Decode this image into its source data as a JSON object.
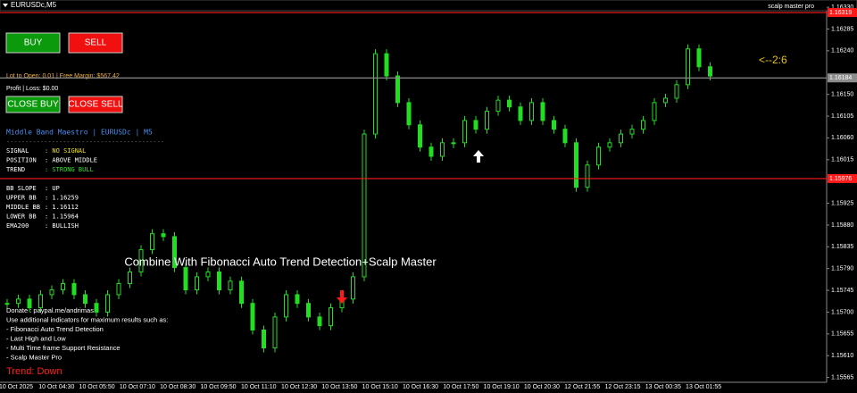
{
  "window": {
    "symbol": "EURUSDc,M5",
    "indicator": "scalp master pro"
  },
  "buttons": {
    "buy": "BUY",
    "sell": "SELL",
    "close_buy": "CLOSE BUY",
    "close_sell": "CLOSE SELL"
  },
  "account": {
    "lot_margin": "Lot to Open: 0.01 | Free Margin: $567.42",
    "profit": "Profit | Loss: $0.00"
  },
  "panel": {
    "title": "Middle Band Maestro | EURUSDc | M5",
    "separator": "------------------------------------------",
    "rows": [
      [
        "SIGNAL",
        ": NO SIGNAL"
      ],
      [
        "POSITION",
        ": ABOVE MIDDLE"
      ],
      [
        "TREND",
        ": STRONG BULL"
      ]
    ],
    "bands": [
      [
        "BB SLOPE",
        ": UP"
      ],
      [
        "UPPER BB",
        ": 1.16259"
      ],
      [
        "MIDDLE BB",
        ": 1.16112"
      ],
      [
        "LOWER BB",
        ": 1.15964"
      ],
      [
        "EMA200",
        ": BULLISH"
      ]
    ]
  },
  "promo": {
    "headline": "Combine With Fibonacci Auto Trend Detection+Scalp Master",
    "lines": [
      "Donate : paypal.me/andrimas",
      "Use additional indicators for maximum results such as:",
      "- Fibonacci Auto Trend Detection",
      "- Last High and Low",
      "- Multi Time frame Support Resistance",
      "- Scalp Master Pro"
    ],
    "trend": "Trend: Down"
  },
  "ratio": "<--2:6",
  "chart_data": {
    "type": "candlestick",
    "color": "#22dd22",
    "x_labels": [
      "10 Oct 2025",
      "10 Oct 04:30",
      "10 Oct 05:50",
      "10 Oct 07:10",
      "10 Oct 08:30",
      "10 Oct 09:50",
      "10 Oct 11:10",
      "10 Oct 12:30",
      "10 Oct 13:50",
      "10 Oct 15:10",
      "10 Oct 16:30",
      "10 Oct 17:50",
      "10 Oct 19:10",
      "10 Oct 20:30",
      "12 Oct 21:55",
      "12 Oct 23:15",
      "13 Oct 00:35",
      "13 Oct 01:55"
    ],
    "prices": [
      1.15718,
      1.15727,
      1.15709,
      1.15736,
      1.15746,
      1.15759,
      1.15736,
      1.15718,
      1.157,
      1.15736,
      1.15759,
      1.15783,
      1.15829,
      1.15862,
      1.15856,
      1.15792,
      1.15746,
      1.15773,
      1.15783,
      1.15746,
      1.15764,
      1.15718,
      1.15663,
      1.15626,
      1.1569,
      1.15736,
      1.15718,
      1.1569,
      1.15672,
      1.15709,
      1.15727,
      1.15773,
      1.16068,
      1.16234,
      1.16188,
      1.16133,
      1.16087,
      1.16041,
      1.16022,
      1.1605,
      1.1605,
      1.16096,
      1.16078,
      1.16115,
      1.16138,
      1.16124,
      1.16096,
      1.16133,
      1.16096,
      1.16078,
      1.1605,
      1.15958,
      1.16004,
      1.16041,
      1.1605,
      1.16068,
      1.16078,
      1.16096,
      1.16133,
      1.16142,
      1.1617,
      1.16244,
      1.16207,
      1.16188
    ],
    "ylim": [
      1.15555,
      1.16345
    ],
    "yticks": [
      {
        "value": 1.1633,
        "label": "1.16330"
      },
      1.16285,
      {
        "value": 1.1624,
        "label": "1.16240"
      },
      {
        "value": 1.1615,
        "label": "1.16150"
      },
      1.16105,
      {
        "value": 1.1606,
        "label": "1.16060"
      },
      1.16015,
      1.15925,
      {
        "value": 1.1588,
        "label": "1.15880"
      },
      1.15835,
      {
        "value": 1.1579,
        "label": "1.15790"
      },
      1.15745,
      {
        "value": 1.157,
        "label": "1.15700"
      },
      1.15655,
      {
        "value": 1.1561,
        "label": "1.15610"
      },
      1.15565
    ],
    "levels": [
      {
        "value": 1.16319,
        "color": "#ff1a1a"
      },
      {
        "value": 1.16184,
        "color": "#8c8c8c"
      },
      {
        "value": 1.15976,
        "color": "#ff1a1a"
      }
    ]
  }
}
